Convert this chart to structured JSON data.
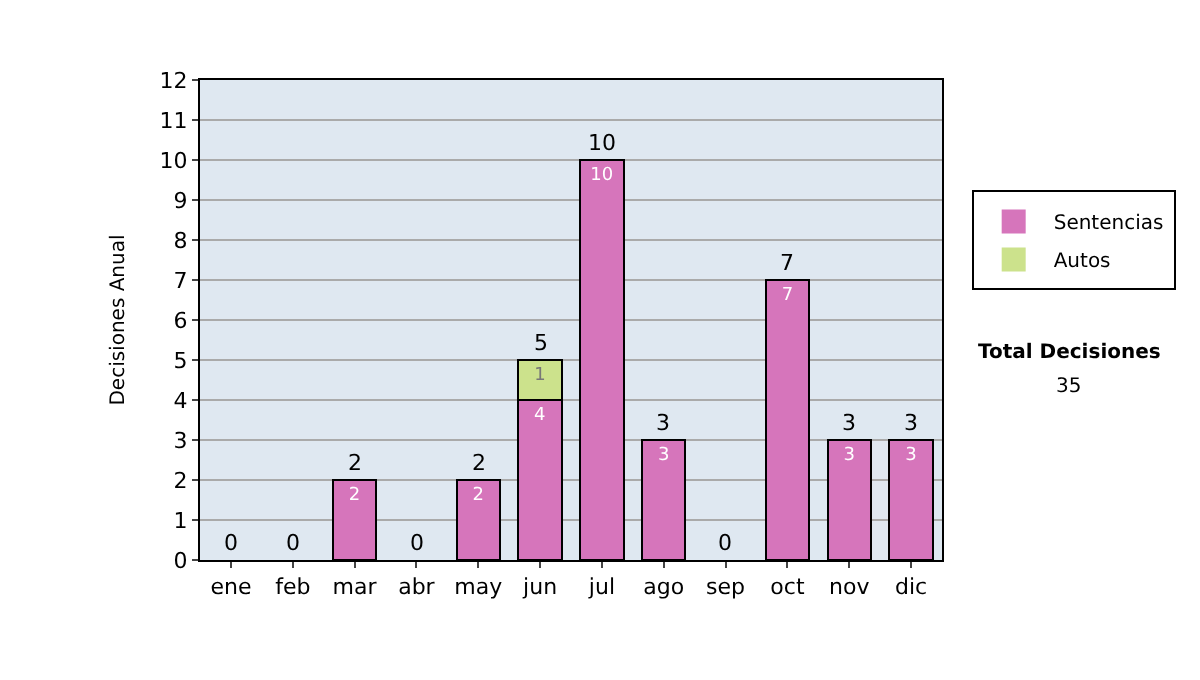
{
  "chart_data": {
    "type": "bar",
    "stacked": true,
    "ylabel": "Decisiones Anual",
    "categories": [
      "ene",
      "feb",
      "mar",
      "abr",
      "may",
      "jun",
      "jul",
      "ago",
      "sep",
      "oct",
      "nov",
      "dic"
    ],
    "series": [
      {
        "name": "Sentencias",
        "color": "#d675bb",
        "values": [
          0,
          0,
          2,
          0,
          2,
          4,
          10,
          3,
          0,
          7,
          3,
          3
        ],
        "value_labels": [
          null,
          null,
          "2",
          null,
          "2",
          "4",
          "10",
          "3",
          null,
          "7",
          "3",
          "3"
        ]
      },
      {
        "name": "Autos",
        "color": "#cce28c",
        "values": [
          0,
          0,
          0,
          0,
          0,
          1,
          0,
          0,
          0,
          0,
          0,
          0
        ],
        "value_labels": [
          null,
          null,
          null,
          null,
          null,
          "1",
          null,
          null,
          null,
          null,
          null,
          null
        ]
      }
    ],
    "totals": [
      "0",
      "0",
      "2",
      "0",
      "2",
      "5",
      "10",
      "3",
      "0",
      "7",
      "3",
      "3"
    ],
    "ylim": [
      0,
      12
    ],
    "yticks": [
      0,
      1,
      2,
      3,
      4,
      5,
      6,
      7,
      8,
      9,
      10,
      11,
      12
    ],
    "grid": "y",
    "legend": "right",
    "annotations": [
      "Total Decisiones",
      "35"
    ]
  }
}
